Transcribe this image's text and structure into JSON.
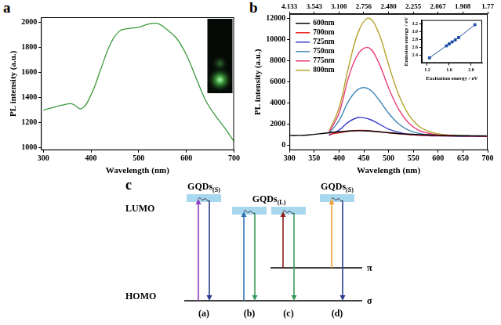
{
  "chart_data": [
    {
      "panel": "a",
      "type": "line",
      "x": [
        300,
        320,
        340,
        360,
        380,
        400,
        420,
        440,
        460,
        480,
        500,
        520,
        540,
        560,
        580,
        600,
        620,
        640,
        660,
        680,
        700
      ],
      "values": [
        1300,
        1320,
        1340,
        1350,
        1310,
        1420,
        1620,
        1820,
        1930,
        1950,
        1960,
        1985,
        1990,
        1940,
        1870,
        1740,
        1560,
        1380,
        1260,
        1160,
        1050
      ],
      "color": "#3c9a3c",
      "x_label": "Wavelength (nm)",
      "y_label": "PL intensity (a.u.)",
      "xlim": [
        295,
        700
      ],
      "ylim": [
        980,
        2040
      ],
      "xticks": [
        300,
        400,
        500,
        600,
        700
      ],
      "yticks": [
        1000,
        1200,
        1400,
        1600,
        1800,
        2000
      ],
      "grid": false
    },
    {
      "panel": "b",
      "type": "line",
      "x": [
        300,
        320,
        340,
        360,
        380,
        400,
        420,
        440,
        460,
        480,
        500,
        520,
        540,
        560,
        580,
        600,
        620,
        640,
        660,
        680,
        700
      ],
      "series": [
        {
          "name": "600nm",
          "color": "#000000",
          "values": [
            900,
            900,
            950,
            1050,
            1150,
            1250,
            1320,
            1350,
            1320,
            1250,
            1150,
            1080,
            1020,
            980,
            950,
            920,
            900,
            880,
            870,
            860,
            850
          ]
        },
        {
          "name": "700nm",
          "color": "#e8231f",
          "values": [
            null,
            null,
            null,
            null,
            1000,
            1150,
            1300,
            1380,
            1350,
            1250,
            1150,
            1050,
            980,
            930,
            900,
            880,
            860,
            850,
            840,
            830,
            820
          ]
        },
        {
          "name": "725nm",
          "color": "#3b3bd0",
          "values": [
            null,
            null,
            null,
            null,
            900,
            1400,
            2200,
            2600,
            2450,
            2000,
            1500,
            1200,
            1000,
            920,
            880,
            860,
            850,
            840,
            830,
            820,
            810
          ]
        },
        {
          "name": "750nm",
          "color": "#3f86b8",
          "values": [
            null,
            null,
            null,
            null,
            1100,
            2300,
            4200,
            5300,
            5300,
            4300,
            3000,
            2000,
            1400,
            1100,
            950,
            880,
            850,
            830,
            820,
            810,
            800
          ]
        },
        {
          "name": "775nm",
          "color": "#e6407a",
          "values": [
            null,
            null,
            null,
            null,
            1200,
            3000,
            6500,
            8700,
            9200,
            7800,
            5400,
            3400,
            2100,
            1400,
            1100,
            950,
            880,
            840,
            820,
            810,
            800
          ]
        },
        {
          "name": "800nm",
          "color": "#b5a22a",
          "values": [
            null,
            null,
            null,
            null,
            1300,
            3500,
            7500,
            10800,
            12000,
            10600,
            7600,
            4800,
            2900,
            1800,
            1300,
            1050,
            930,
            870,
            840,
            820,
            800
          ]
        }
      ],
      "x_label": "Wavelength (nm)",
      "y_label": "PL intensity (a.u.)",
      "xlim": [
        300,
        700
      ],
      "ylim": [
        -500,
        12400
      ],
      "xticks": [
        300,
        350,
        400,
        450,
        500,
        550,
        600,
        650,
        700
      ],
      "yticks": [
        0,
        2000,
        4000,
        6000,
        8000,
        10000,
        12000
      ],
      "x2lim": [
        4.133,
        1.771
      ],
      "x2ticks": [
        4.133,
        3.543,
        {
          "value": 3.1,
          "label": "3.100"
        },
        2.756,
        {
          "value": 2.48,
          "label": "2.480"
        },
        2.255,
        2.067,
        1.908,
        1.77
      ],
      "legend": "upper left",
      "grid": false,
      "inset": {
        "type": "line",
        "marker": "square",
        "color": "#1f4fa8",
        "x": [
          1.24,
          1.55,
          1.6,
          1.653,
          1.71,
          1.771,
          2.067
        ],
        "values": [
          2.33,
          2.64,
          2.69,
          2.74,
          2.79,
          2.85,
          3.18
        ],
        "x_label": "Excitation energy / eV",
        "y_label": "Emission energy / eV",
        "xlim": [
          1.1,
          2.2
        ],
        "ylim": [
          2.2,
          3.3
        ],
        "xticks": [
          1.2,
          1.6,
          {
            "value": 2,
            "label": "2.0"
          }
        ],
        "yticks": [
          2.4,
          2.6,
          2.8,
          {
            "value": 3,
            "label": "3.0"
          },
          3.2
        ],
        "grid": false
      }
    }
  ],
  "diagram": {
    "panel": "c",
    "groups": [
      {
        "text": "GQDs",
        "subscript": "(S)"
      },
      {
        "text": "GQDs",
        "subscript": "(L)"
      },
      {
        "text": "GQDs",
        "subscript": "(S)"
      }
    ],
    "levels": [
      "LUMO",
      "HOMO"
    ],
    "orbitals": [
      "π",
      "σ"
    ],
    "transitions": [
      "(a)",
      "(b)",
      "(c)",
      "(d)"
    ]
  }
}
